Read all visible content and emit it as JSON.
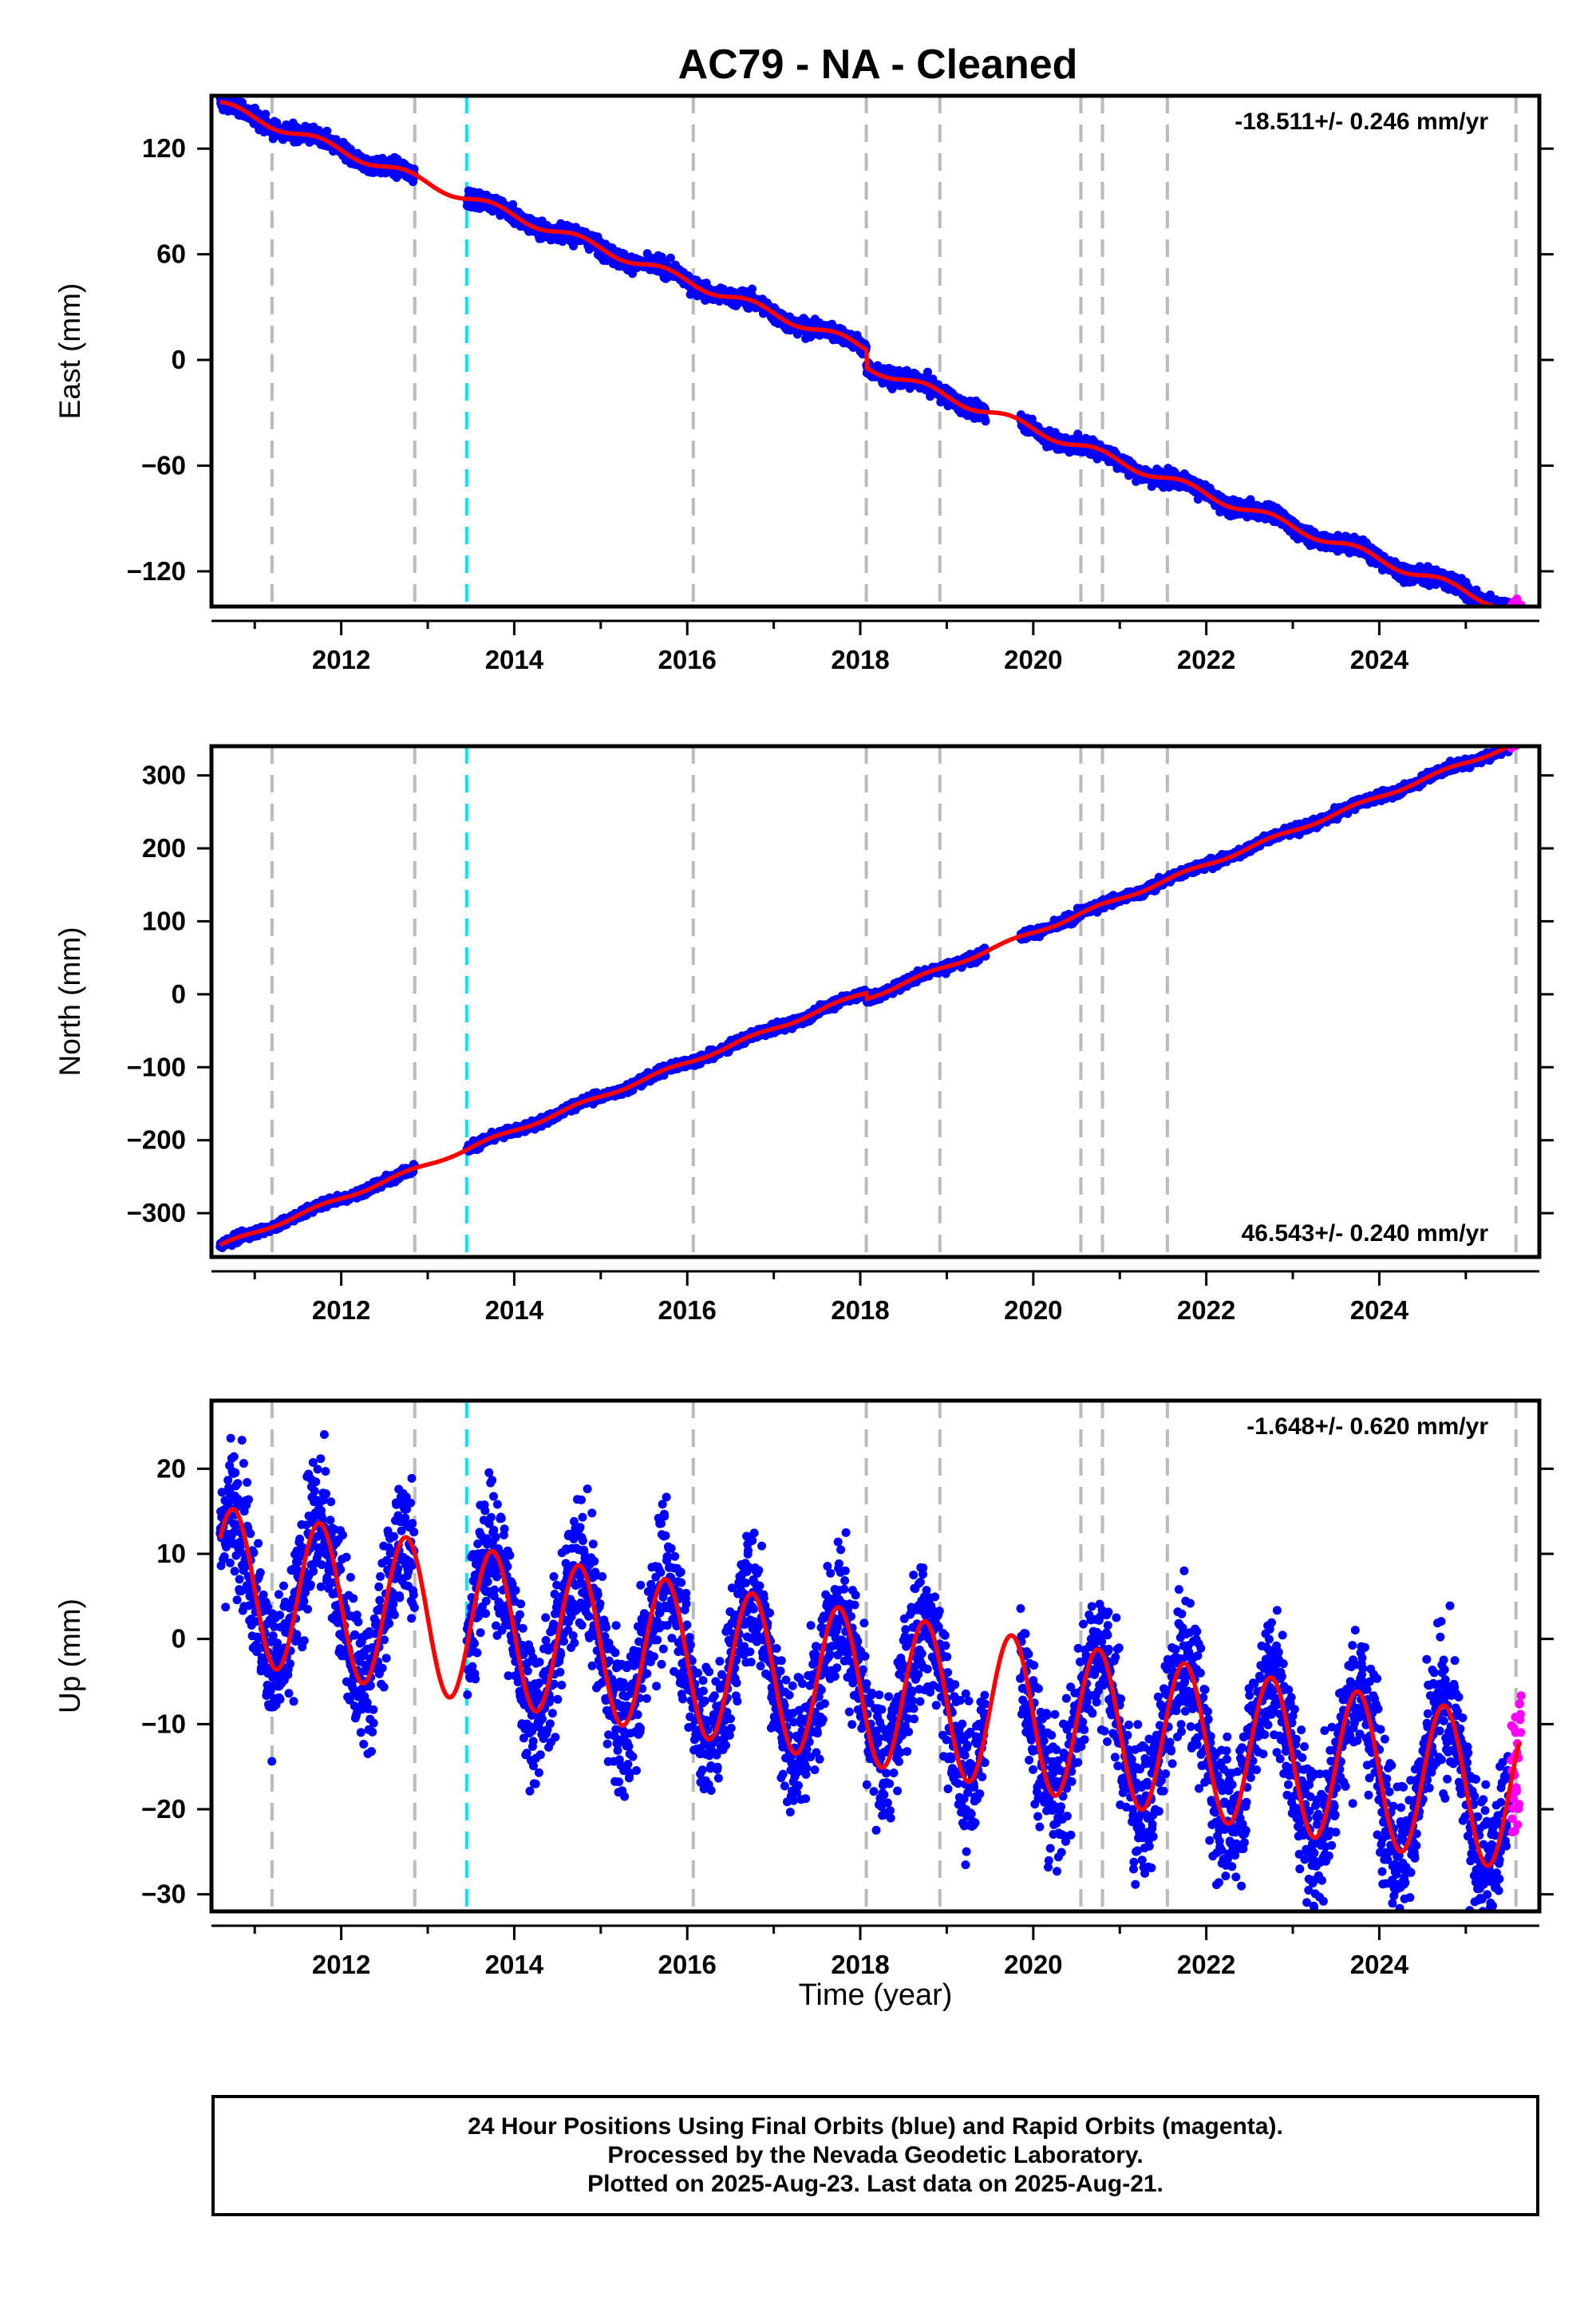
{
  "chart_data": {
    "title": "AC79  - NA - Cleaned",
    "type": "scatter",
    "xlabel": "Time (year)",
    "x_tick_labels": [
      "2012",
      "2014",
      "2016",
      "2018",
      "2020",
      "2022",
      "2024"
    ],
    "x_range": [
      2010.5,
      2025.85
    ],
    "event_lines": {
      "gray": [
        2011.2,
        2012.85,
        2016.07,
        2018.07,
        2018.92,
        2020.55,
        2020.8,
        2021.55,
        2025.58
      ],
      "cyan": [
        2013.45
      ]
    },
    "series_legend": [
      {
        "name": "Final Orbits",
        "color": "#0000ff"
      },
      {
        "name": "Rapid Orbits",
        "color": "#ff00ff"
      },
      {
        "name": "Model fit",
        "color": "#ff0000"
      }
    ],
    "panels": [
      {
        "ylabel": "East (mm)",
        "ylim": [
          -140,
          150
        ],
        "y_ticks": [
          120,
          60,
          0,
          -60,
          -120
        ],
        "y_tick_labels": [
          "120",
          "60",
          "0",
          "−60",
          "−120"
        ],
        "rate_label": "-18.511+/- 0.246 mm/yr",
        "rate_position": "top-right",
        "rate_mm_per_yr": -18.511,
        "start_value": 145,
        "seasonal_amplitude": 2.5,
        "noise": 2.2,
        "steps": [
          {
            "year": 2018.07,
            "offset": -10
          }
        ],
        "gaps": [
          [
            2012.85,
            2013.45
          ],
          [
            2019.45,
            2019.85
          ]
        ]
      },
      {
        "ylabel": "North (mm)",
        "ylim": [
          -360,
          340
        ],
        "y_ticks": [
          300,
          200,
          100,
          0,
          -100,
          -200,
          -300
        ],
        "y_tick_labels": [
          "300",
          "200",
          "100",
          "0",
          "−100",
          "−200",
          "−300"
        ],
        "rate_label": "46.543+/- 0.240 mm/yr",
        "rate_position": "bottom-right",
        "rate_mm_per_yr": 46.543,
        "start_value": -345,
        "seasonal_amplitude": 2.5,
        "noise": 3,
        "steps": [
          {
            "year": 2018.07,
            "offset": -8
          }
        ],
        "gaps": [
          [
            2012.85,
            2013.45
          ],
          [
            2019.45,
            2019.85
          ]
        ]
      },
      {
        "ylabel": "Up (mm)",
        "ylim": [
          -32,
          28
        ],
        "y_ticks": [
          20,
          10,
          0,
          -10,
          -20,
          -30
        ],
        "y_tick_labels": [
          "20",
          "10",
          "0",
          "−10",
          "−20",
          "−30"
        ],
        "rate_label": "-1.648+/- 0.620 mm/yr",
        "rate_position": "top-right",
        "rate_mm_per_yr": -1.648,
        "start_value": 6.5,
        "seasonal_amplitude": 9,
        "noise": 4,
        "steps": [],
        "gaps": [
          [
            2012.85,
            2013.45
          ],
          [
            2019.45,
            2019.85
          ]
        ]
      }
    ]
  },
  "caption": {
    "line1": "24 Hour Positions Using Final Orbits (blue) and Rapid Orbits (magenta).",
    "line2": "Processed by the Nevada Geodetic Laboratory.",
    "line3": "Plotted on 2025-Aug-23. Last data on 2025-Aug-21."
  },
  "colors": {
    "final_orbits": "#0000ff",
    "rapid_orbits": "#ff00ff",
    "model_fit": "#ff0000",
    "gray_event": "#bbbbbb",
    "cyan_event": "#00e5ff"
  }
}
